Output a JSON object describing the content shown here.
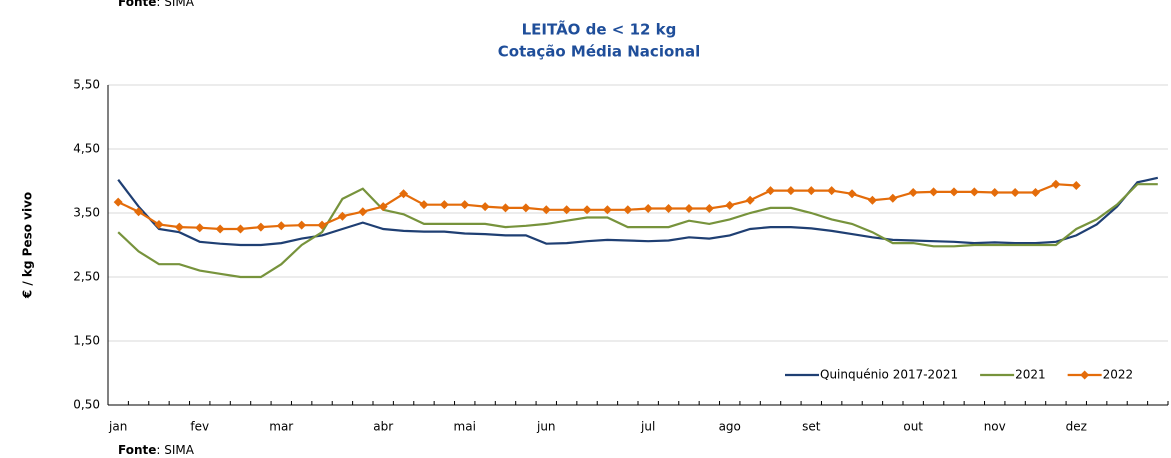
{
  "chart_data": {
    "type": "line",
    "title": "LEITÃO de < 12 kg",
    "subtitle": "Cotação Média Nacional",
    "y_label": "€ / kg Peso vivo",
    "source_top": {
      "label": "Fonte",
      "text": ": SIMA"
    },
    "source": {
      "label": "Fonte",
      "text": ": SIMA"
    },
    "categories": [
      "jan",
      null,
      null,
      null,
      "fev",
      null,
      null,
      null,
      "mar",
      null,
      null,
      null,
      null,
      "abr",
      null,
      null,
      null,
      "mai",
      null,
      null,
      null,
      "jun",
      null,
      null,
      null,
      null,
      "jul",
      null,
      null,
      null,
      "ago",
      null,
      null,
      null,
      "set",
      null,
      null,
      null,
      null,
      "out",
      null,
      null,
      null,
      "nov",
      null,
      null,
      null,
      "dez",
      null,
      null,
      null,
      null
    ],
    "ylim": [
      0.5,
      5.5
    ],
    "yticks": [
      {
        "value": 0.5,
        "label": "0,50"
      },
      {
        "value": 1.5,
        "label": "1,50"
      },
      {
        "value": 2.5,
        "label": "2,50"
      },
      {
        "value": 3.5,
        "label": "3,50"
      },
      {
        "value": 4.5,
        "label": "4,50"
      },
      {
        "value": 5.5,
        "label": "5,50"
      }
    ],
    "grid": true,
    "legend": "bottom-right",
    "series": [
      {
        "name": "Quinquénio 2017-2021",
        "color": "#1f3f73",
        "marker": false,
        "values": [
          4.02,
          3.6,
          3.25,
          3.2,
          3.05,
          3.02,
          3.0,
          3.0,
          3.03,
          3.1,
          3.15,
          3.25,
          3.35,
          3.25,
          3.22,
          3.21,
          3.21,
          3.18,
          3.17,
          3.15,
          3.15,
          3.02,
          3.03,
          3.06,
          3.08,
          3.07,
          3.06,
          3.07,
          3.12,
          3.1,
          3.15,
          3.25,
          3.28,
          3.28,
          3.26,
          3.22,
          3.17,
          3.12,
          3.08,
          3.07,
          3.06,
          3.05,
          3.03,
          3.04,
          3.03,
          3.03,
          3.05,
          3.15,
          3.32,
          3.6,
          3.98,
          4.05
        ]
      },
      {
        "name": "2021",
        "color": "#77933c",
        "marker": false,
        "values": [
          3.2,
          2.9,
          2.7,
          2.7,
          2.6,
          2.55,
          2.5,
          2.5,
          2.7,
          3.0,
          3.2,
          3.72,
          3.88,
          3.55,
          3.48,
          3.33,
          3.33,
          3.33,
          3.33,
          3.28,
          3.3,
          3.33,
          3.38,
          3.43,
          3.43,
          3.28,
          3.28,
          3.28,
          3.38,
          3.33,
          3.4,
          3.5,
          3.58,
          3.58,
          3.5,
          3.4,
          3.33,
          3.2,
          3.03,
          3.03,
          2.98,
          2.98,
          3.0,
          3.0,
          3.0,
          3.0,
          3.0,
          3.25,
          3.4,
          3.63,
          3.95,
          3.95
        ]
      },
      {
        "name": "2022",
        "color": "#e46c0a",
        "marker": true,
        "values": [
          3.67,
          3.52,
          3.32,
          3.28,
          3.27,
          3.25,
          3.25,
          3.28,
          3.3,
          3.31,
          3.31,
          3.45,
          3.52,
          3.6,
          3.8,
          3.63,
          3.63,
          3.63,
          3.6,
          3.58,
          3.58,
          3.55,
          3.55,
          3.55,
          3.55,
          3.55,
          3.57,
          3.57,
          3.57,
          3.57,
          3.62,
          3.7,
          3.85,
          3.85,
          3.85,
          3.85,
          3.8,
          3.7,
          3.73,
          3.82,
          3.83,
          3.83,
          3.83,
          3.82,
          3.82,
          3.82,
          3.95,
          3.93,
          null,
          null,
          null,
          null
        ]
      }
    ]
  }
}
